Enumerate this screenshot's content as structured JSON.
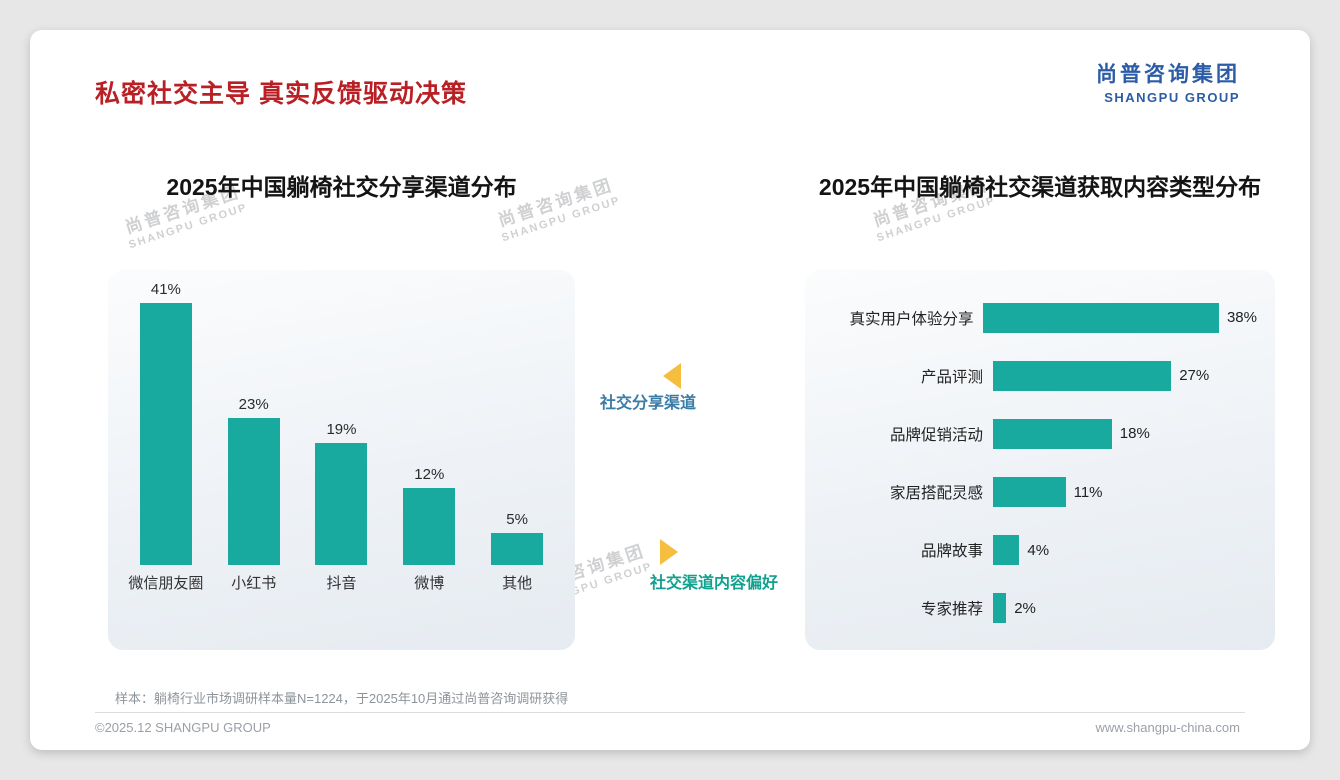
{
  "header": {
    "title": "私密社交主导 真实反馈驱动决策",
    "logo_cn": "尚普咨询集团",
    "logo_en": "SHANGPU GROUP"
  },
  "annotations": {
    "share_channels": "社交分享渠道",
    "content_preference": "社交渠道内容偏好"
  },
  "watermark": {
    "cn": "尚普咨询集团",
    "en": "SHANGPU GROUP"
  },
  "footer": {
    "sample_note": "样本：躺椅行业市场调研样本量N=1224，于2025年10月通过尚普咨询调研获得",
    "copyright": "©2025.12 SHANGPU GROUP",
    "website": "www.shangpu-china.com"
  },
  "colors": {
    "accent_teal": "#18A99F",
    "title_red": "#B92025",
    "logo_blue": "#2C5CA6",
    "arrow_yellow": "#F6BE3F",
    "ann_blue": "#3A7CA8",
    "ann_teal": "#12A18E"
  },
  "chart_data": [
    {
      "type": "bar",
      "title": "2025年中国躺椅社交分享渠道分布",
      "categories": [
        "微信朋友圈",
        "小红书",
        "抖音",
        "微博",
        "其他"
      ],
      "values": [
        41,
        23,
        19,
        12,
        5
      ],
      "unit": "%",
      "ylim": [
        0,
        45
      ],
      "grid": false,
      "legend": false
    },
    {
      "type": "bar",
      "orientation": "horizontal",
      "title": "2025年中国躺椅社交渠道获取内容类型分布",
      "categories": [
        "真实用户体验分享",
        "产品评测",
        "品牌促销活动",
        "家居搭配灵感",
        "品牌故事",
        "专家推荐"
      ],
      "values": [
        38,
        27,
        18,
        11,
        4,
        2
      ],
      "unit": "%",
      "xlim": [
        0,
        40
      ],
      "grid": false,
      "legend": false
    }
  ]
}
